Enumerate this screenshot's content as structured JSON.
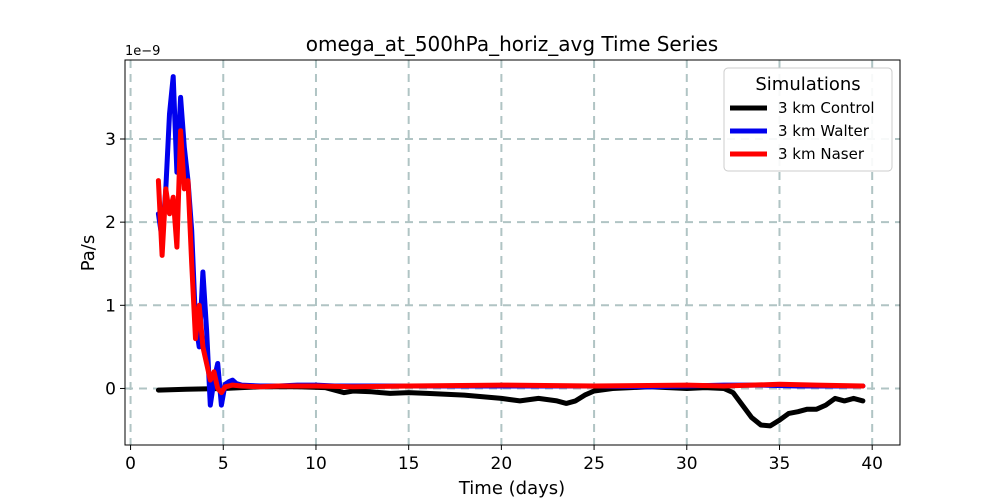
{
  "chart_data": {
    "type": "line",
    "title": "omega_at_500hPa_horiz_avg Time Series",
    "xlabel": "Time (days)",
    "ylabel": "Pa/s",
    "y_scale_label": "1e−9",
    "xlim": [
      -0.3,
      41.5
    ],
    "ylim": [
      -0.68,
      3.95
    ],
    "xticks": [
      0,
      5,
      10,
      15,
      20,
      25,
      30,
      35,
      40
    ],
    "yticks": [
      0,
      1,
      2,
      3
    ],
    "grid": true,
    "legend": {
      "title": "Simulations",
      "position": "top-right"
    },
    "series": [
      {
        "name": "3 km Control",
        "color": "#000000",
        "x": [
          1.5,
          3,
          5,
          7,
          9,
          10.5,
          11.5,
          12,
          13,
          14,
          15,
          16,
          17,
          18,
          19,
          20,
          21,
          22,
          23,
          23.5,
          24,
          24.5,
          25,
          26,
          27,
          28,
          29,
          30,
          31,
          32,
          32.5,
          33,
          33.5,
          34,
          34.5,
          35,
          35.5,
          36,
          36.5,
          37,
          37.5,
          38,
          38.5,
          39,
          39.5
        ],
        "y": [
          -0.02,
          -0.01,
          0.0,
          0.02,
          0.02,
          0.01,
          -0.05,
          -0.03,
          -0.04,
          -0.06,
          -0.05,
          -0.06,
          -0.07,
          -0.08,
          -0.1,
          -0.12,
          -0.15,
          -0.12,
          -0.15,
          -0.18,
          -0.15,
          -0.08,
          -0.03,
          0.0,
          0.01,
          0.02,
          0.01,
          0.0,
          0.01,
          0.0,
          -0.05,
          -0.2,
          -0.35,
          -0.44,
          -0.45,
          -0.38,
          -0.3,
          -0.28,
          -0.25,
          -0.25,
          -0.2,
          -0.12,
          -0.15,
          -0.12,
          -0.15
        ]
      },
      {
        "name": "3 km Walter",
        "color": "#0000ee",
        "x": [
          1.5,
          1.7,
          1.9,
          2.1,
          2.3,
          2.5,
          2.7,
          2.9,
          3.1,
          3.3,
          3.5,
          3.7,
          3.9,
          4.1,
          4.3,
          4.5,
          4.7,
          4.9,
          5.1,
          5.3,
          5.5,
          5.7,
          6,
          7,
          8,
          9,
          10,
          11,
          12,
          15,
          20,
          23,
          25,
          28,
          30,
          32,
          34,
          36,
          38,
          39.5
        ],
        "y": [
          2.1,
          1.8,
          2.4,
          3.3,
          3.75,
          2.6,
          3.5,
          2.9,
          2.5,
          1.9,
          0.8,
          0.5,
          1.4,
          0.7,
          -0.2,
          0.1,
          0.3,
          -0.2,
          0.05,
          0.08,
          0.1,
          0.06,
          0.04,
          0.03,
          0.03,
          0.04,
          0.04,
          0.03,
          0.03,
          0.03,
          0.03,
          0.03,
          0.03,
          0.02,
          0.03,
          0.04,
          0.04,
          0.03,
          0.03,
          0.03
        ]
      },
      {
        "name": "3 km Naser",
        "color": "#ff0000",
        "x": [
          1.5,
          1.7,
          1.9,
          2.1,
          2.3,
          2.5,
          2.7,
          2.9,
          3.1,
          3.3,
          3.5,
          3.7,
          3.9,
          4.1,
          4.3,
          4.5,
          4.7,
          4.9,
          5.1,
          5.3,
          5.5,
          6,
          7,
          8,
          10,
          12,
          15,
          20,
          25,
          30,
          32,
          35,
          37,
          39.5
        ],
        "y": [
          2.5,
          1.6,
          2.4,
          2.1,
          2.3,
          1.7,
          3.1,
          2.4,
          2.5,
          1.5,
          0.6,
          1.0,
          0.5,
          0.3,
          0.1,
          0.2,
          0.0,
          -0.05,
          0.02,
          0.03,
          0.04,
          0.03,
          0.02,
          0.03,
          0.03,
          0.02,
          0.03,
          0.04,
          0.03,
          0.04,
          0.03,
          0.05,
          0.04,
          0.03
        ]
      }
    ]
  }
}
